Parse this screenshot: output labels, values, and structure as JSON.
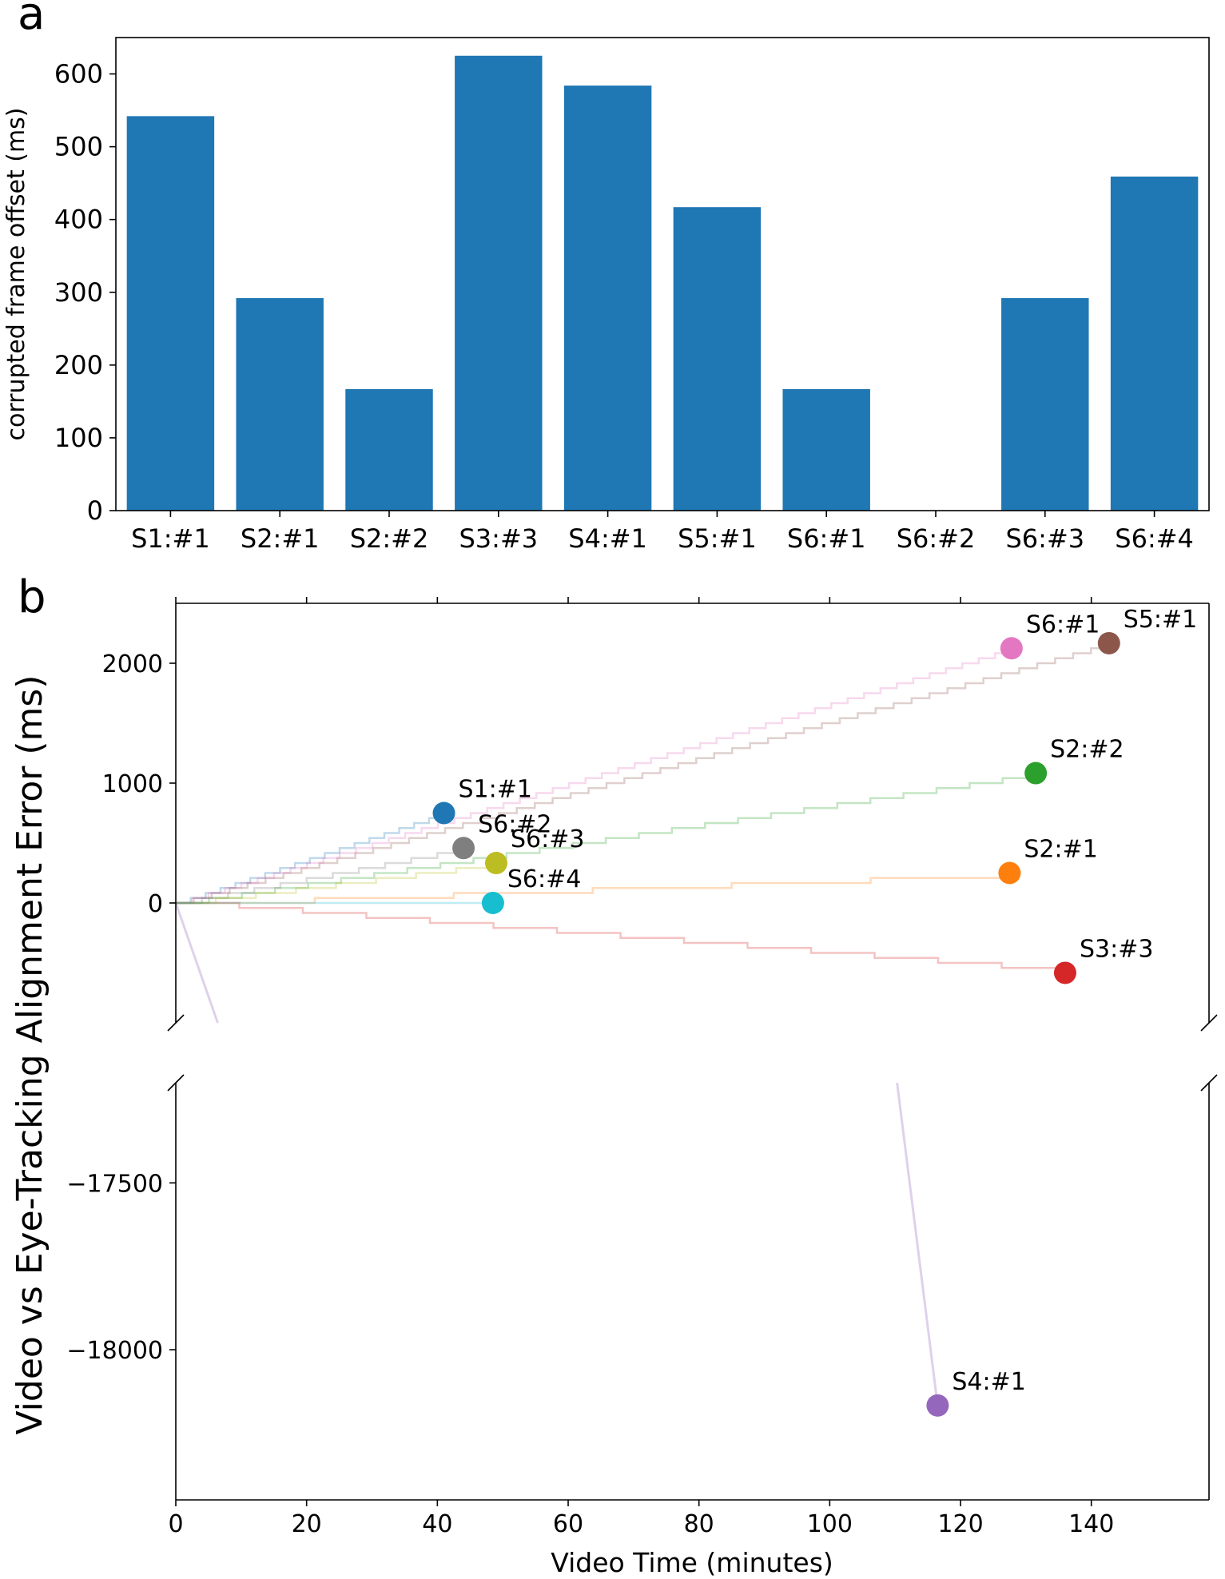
{
  "chart_data": [
    {
      "panel_label": "a",
      "type": "bar",
      "categories": [
        "S1:#1",
        "S2:#1",
        "S2:#2",
        "S3:#3",
        "S4:#1",
        "S5:#1",
        "S6:#1",
        "S6:#2",
        "S6:#3",
        "S6:#4"
      ],
      "values": [
        542,
        292,
        167,
        625,
        584,
        417,
        167,
        0,
        292,
        459
      ],
      "color": "#1f77b4",
      "xlabel": "",
      "ylabel": "corrupted frame offset (ms)",
      "ylim": [
        0,
        650
      ],
      "yticks": [
        0,
        100,
        200,
        300,
        400,
        500,
        600
      ],
      "yticklabels": [
        "0",
        "100",
        "200",
        "300",
        "400",
        "500",
        "600"
      ]
    },
    {
      "panel_label": "b",
      "type": "scatter",
      "xlabel": "Video Time (minutes)",
      "ylabel": "Video vs Eye-Tracking Alignment Error (ms)",
      "xlim": [
        0,
        158
      ],
      "xticks": [
        0,
        20,
        40,
        60,
        80,
        100,
        120,
        140
      ],
      "xticklabels": [
        "0",
        "20",
        "40",
        "60",
        "80",
        "100",
        "120",
        "140"
      ],
      "broken_axis": true,
      "ylim_upper": [
        -1000,
        2500
      ],
      "yticks_upper": [
        0,
        1000,
        2000
      ],
      "yticklabels_upper": [
        "0",
        "1000",
        "2000"
      ],
      "ylim_lower": [
        -18450,
        -17200
      ],
      "yticks_lower": [
        -17500,
        -18000
      ],
      "yticklabels_lower": [
        "−17500",
        "−18000"
      ],
      "points": [
        {
          "label": "S1:#1",
          "x": 41,
          "y": 750,
          "color": "#1f77b4"
        },
        {
          "label": "S2:#1",
          "x": 127.5,
          "y": 250,
          "color": "#ff7f0e"
        },
        {
          "label": "S2:#2",
          "x": 131.5,
          "y": 1083,
          "color": "#2ca02c"
        },
        {
          "label": "S3:#3",
          "x": 136,
          "y": -583,
          "color": "#d62728"
        },
        {
          "label": "S4:#1",
          "x": 116.5,
          "y": -18167,
          "color": "#9467bd"
        },
        {
          "label": "S5:#1",
          "x": 142.7,
          "y": 2167,
          "color": "#8c564b"
        },
        {
          "label": "S6:#1",
          "x": 127.8,
          "y": 2125,
          "color": "#e377c2"
        },
        {
          "label": "S6:#2",
          "x": 44,
          "y": 458,
          "color": "#7f7f7f"
        },
        {
          "label": "S6:#3",
          "x": 49,
          "y": 333,
          "color": "#bcbd22"
        },
        {
          "label": "S6:#4",
          "x": 48.5,
          "y": 0,
          "color": "#17becf"
        }
      ]
    }
  ]
}
